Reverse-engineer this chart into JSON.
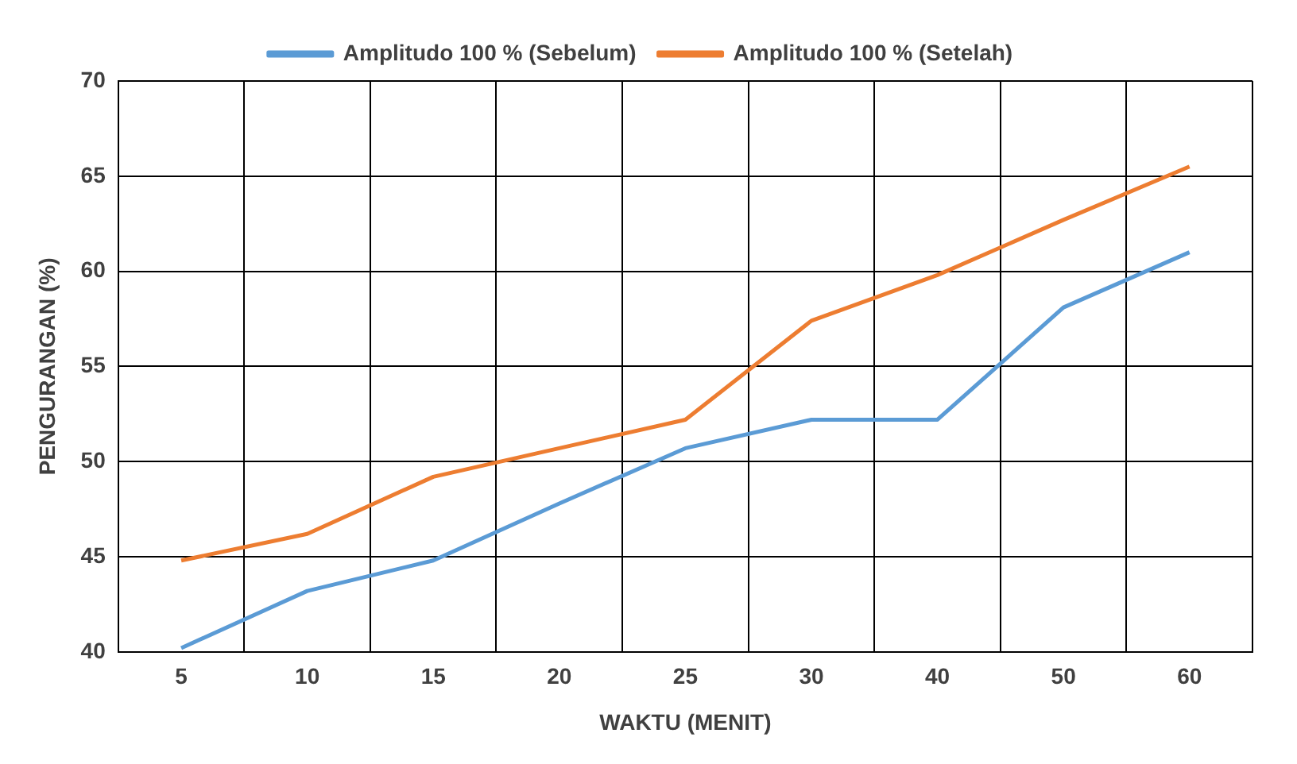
{
  "chart_data": {
    "type": "line",
    "xlabel": "WAKTU (MENIT)",
    "ylabel": "PENGURANGAN (%)",
    "categories": [
      "5",
      "10",
      "15",
      "20",
      "25",
      "30",
      "40",
      "50",
      "60"
    ],
    "series": [
      {
        "name": "Amplitudo 100 % (Sebelum)",
        "color": "#5b9bd5",
        "values": [
          40.2,
          43.2,
          44.8,
          47.8,
          50.7,
          52.2,
          52.2,
          58.1,
          61.0
        ]
      },
      {
        "name": "Amplitudo 100 % (Setelah)",
        "color": "#ed7d31",
        "values": [
          44.8,
          46.2,
          49.2,
          50.7,
          52.2,
          57.4,
          59.8,
          62.7,
          65.5
        ]
      }
    ],
    "ylim": [
      40,
      70
    ],
    "yticks": [
      40,
      45,
      50,
      55,
      60,
      65,
      70
    ],
    "grid": true,
    "legend": "top",
    "marker": "none",
    "line_style": "solid"
  }
}
